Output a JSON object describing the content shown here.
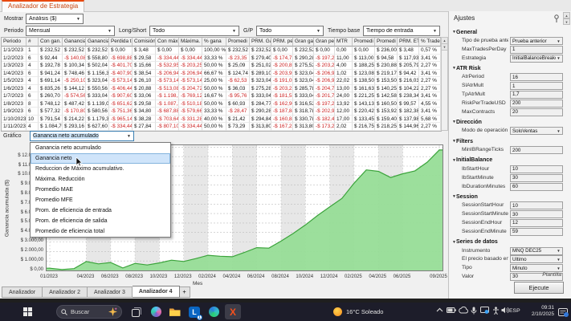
{
  "window": {
    "tab_title": "Analizador de Estrategia"
  },
  "toolbar": {
    "mostrar_label": "Mostrar",
    "mostrar_value": "Análisis ($)",
    "periodo_label": "Periodo",
    "periodo_value": "Mensual",
    "longshort_label": "Long/Short",
    "longshort_value": "Todo",
    "gp_label": "G/P",
    "gp_value": "Todo",
    "tiempobase_label": "Tiempo base",
    "tiempobase_value": "Tiempo de entrada"
  },
  "table": {
    "columns": [
      "Periodo",
      "#",
      "Con gan.",
      "Ganancia",
      "Ganancia",
      "Perdida t",
      "Comisión",
      "Con máx",
      "Máxima.",
      "% gana",
      "Promedi",
      "PRM. Ga",
      "PRM. per",
      "Gran gar",
      "Gran per",
      "MTR",
      "Promedi",
      "Promedi",
      "PRM. ETL",
      "% Trade"
    ],
    "rows": [
      [
        "1/1/2023",
        "1",
        "$ 232,52",
        "$ 232,52",
        "$ 232,52",
        "$ 0,00",
        "$ 3,48",
        "$ 0,00",
        "$ 0,00",
        "100,00 %",
        "$ 232,52",
        "$ 232,52",
        "$ 0,00",
        "$ 232,52",
        "$ 0,00",
        "0,00",
        "$ 0,00",
        "$ 236,00",
        "$ 3,48",
        "0,57 %"
      ],
      [
        "1/2/2023",
        "6",
        "$ 92,44",
        "-$ 140,08",
        "$ 558,80",
        "-$ 698,88",
        "$ 29,58",
        "-$ 334,44",
        "-$ 334,44",
        "33,33 %",
        "-$ 23,35",
        "$ 279,40",
        "-$ 174,72",
        "$ 290,28",
        "-$ 197,22",
        "11,00",
        "$ 113,00",
        "$ 94,58",
        "$ 117,93",
        "3,41 %"
      ],
      [
        "1/3/2023",
        "4",
        "$ 192,78",
        "$ 100,34",
        "$ 502,04",
        "-$ 401,70",
        "$ 15,66",
        "-$ 532,95",
        "-$ 203,25",
        "50,00 %",
        "$ 25,09",
        "$ 251,02",
        "-$ 200,85",
        "$ 275,52",
        "-$ 203,25",
        "4,00",
        "$ 188,25",
        "$ 230,88",
        "$ 205,79",
        "2,27 %"
      ],
      [
        "1/4/2023",
        "6",
        "$ 941,24",
        "$ 748,46",
        "$ 1.156,36",
        "-$ 407,90",
        "$ 38,54",
        "-$ 206,94",
        "-$ 206,94",
        "66,67 %",
        "$ 124,74",
        "$ 289,10",
        "-$ 203,95",
        "$ 323,04",
        "-$ 206,94",
        "1,02",
        "$ 123,08",
        "$ 219,17",
        "$ 94,42",
        "3,41 %"
      ],
      [
        "1/5/2023",
        "4",
        "$ 691,14",
        "-$ 250,10",
        "$ 323,04",
        "-$ 573,14",
        "$ 26,10",
        "-$ 573,14",
        "-$ 573,14",
        "25,00 %",
        "-$ 62,53",
        "$ 323,04",
        "-$ 191,05",
        "$ 323,04",
        "-$ 206,94",
        "22,02",
        "$ 138,50",
        "$ 153,50",
        "$ 216,03",
        "2,27 %"
      ],
      [
        "1/6/2023",
        "4",
        "$ 835,26",
        "$ 144,12",
        "$ 550,56",
        "-$ 406,44",
        "$ 20,88",
        "-$ 513,08",
        "-$ 204,72",
        "50,00 %",
        "$ 36,03",
        "$ 275,28",
        "-$ 203,22",
        "$ 285,78",
        "-$ 204,72",
        "13,00",
        "$ 161,63",
        "$ 140,25",
        "$ 104,22",
        "2,27 %"
      ],
      [
        "1/7/2023",
        "6",
        "$ 260,70",
        "-$ 574,56",
        "$ 333,04",
        "-$ 907,60",
        "$ 33,06",
        "-$ 1.198,14",
        "-$ 769,12",
        "16,67 %",
        "-$ 95,76",
        "$ 333,04",
        "-$ 181,52",
        "$ 333,04",
        "-$ 201,76",
        "24,00",
        "$ 221,25",
        "$ 142,58",
        "$ 238,34",
        "3,41 %"
      ],
      [
        "1/8/2023",
        "8",
        "$ 748,12",
        "$ 487,42",
        "$ 1.139,04",
        "-$ 651,62",
        "$ 29,58",
        "-$ 1.087,16",
        "-$ 510,18",
        "50,00 %",
        "$ 60,93",
        "$ 284,77",
        "-$ 162,90",
        "$ 316,52",
        "-$ 197,22",
        "13,92",
        "$ 143,13",
        "$ 160,50",
        "$ 99,57",
        "4,55 %"
      ],
      [
        "1/9/2023",
        "6",
        "$ 577,32",
        "-$ 170,80",
        "$ 580,56",
        "-$ 751,36",
        "$ 34,80",
        "-$ 687,88",
        "-$ 579,66",
        "33,33 %",
        "-$ 28,47",
        "$ 290,28",
        "-$ 187,84",
        "$ 318,78",
        "-$ 202,96",
        "12,00",
        "$ 220,42",
        "$ 153,92",
        "$ 182,38",
        "3,41 %"
      ],
      [
        "1/10/2023",
        "10",
        "$ 791,54",
        "$ 214,22",
        "$ 1.179,36",
        "-$ 965,14",
        "$ 38,28",
        "-$ 703,64",
        "-$ 331,28",
        "40,00 %",
        "$ 21,42",
        "$ 294,84",
        "-$ 160,88",
        "$ 330,78",
        "-$ 182,48",
        "17,00",
        "$ 133,45",
        "$ 159,40",
        "$ 137,98",
        "5,68 %"
      ],
      [
        "1/11/2023",
        "4",
        "$ 1.084,70",
        "$ 293,16",
        "$ 627,60",
        "-$ 334,44",
        "$ 27,84",
        "-$ 807,10",
        "-$ 334,44",
        "50,00 %",
        "$ 73,29",
        "$ 313,80",
        "-$ 167,22",
        "$ 313,80",
        "-$ 173,22",
        "2,02",
        "$ 216,75",
        "$ 218,25",
        "$ 144,96",
        "2,27 %"
      ]
    ]
  },
  "grafico": {
    "label": "Gráfico",
    "value": "Ganancia neto acumulado",
    "hover_index": 1,
    "menu_items": [
      "Ganancia neto acumulado",
      "Ganancia neto",
      "Reduccion de Máximo acumulativo.",
      "Máxima. Reducción",
      "Promedio MAE",
      "Promedio MFE",
      "Prom. de eficiencia de entrada",
      "Prom. de eficiencia de salida",
      "Promedio de eficiencia total"
    ]
  },
  "chart_data": {
    "type": "area",
    "series_name": "Ganancia neto acumulado",
    "title": "",
    "xlabel": "Mes",
    "ylabel": "Ganancia acumulada ($)",
    "x": [
      "01/2023",
      "02/2023",
      "03/2023",
      "04/2023",
      "05/2023",
      "06/2023",
      "07/2023",
      "08/2023",
      "09/2023",
      "10/2023",
      "11/2023",
      "12/2023",
      "01/2024",
      "02/2024",
      "03/2024",
      "04/2024",
      "05/2024",
      "06/2024",
      "07/2024",
      "08/2024",
      "09/2024",
      "10/2024",
      "11/2024",
      "12/2024",
      "01/2025",
      "02/2025",
      "03/2025",
      "04/2025",
      "05/2025",
      "06/2025",
      "07/2025",
      "08/2025",
      "09/2025"
    ],
    "values": [
      233,
      92,
      193,
      941,
      691,
      835,
      261,
      748,
      577,
      792,
      1085,
      950,
      1250,
      1600,
      1500,
      1450,
      1900,
      2400,
      2350,
      3100,
      3900,
      4800,
      5800,
      6700,
      7600,
      9200,
      10600,
      10450,
      9800,
      10200,
      10500,
      11400,
      12700
    ],
    "x_tick_labels": [
      "01/2023",
      "04/2023",
      "06/2023",
      "08/2023",
      "10/2023",
      "12/2023",
      "02/2024",
      "04/2024",
      "06/2024",
      "08/2024",
      "10/2024",
      "12/2024",
      "02/2025",
      "04/2025",
      "06/2025",
      "09/2025"
    ],
    "x_tick_months": [
      1,
      4,
      6,
      8,
      10,
      12,
      14,
      16,
      18,
      20,
      22,
      24,
      26,
      28,
      30,
      33
    ],
    "y_tick_labels": [
      "$ 0,00",
      "$ 1.000,00",
      "$ 2.000,00",
      "$ 3.000,00",
      "$ 4.000,00",
      "$ 5.000,00",
      "$ 6.000,00",
      "$ 7.000,00",
      "$ 8.000,00",
      "$ 9.000,00",
      "$ 10.000,00",
      "$ 11.000,00",
      "$ 12.000,00"
    ],
    "ylim": [
      0,
      13200
    ],
    "grid": "dashed",
    "legend": "none",
    "area_fill": "#97dd97",
    "line_color": "#3ba33b",
    "band_color": "#e7e7e7"
  },
  "tabs": {
    "items": [
      "Analizador",
      "Analizador 2",
      "Analizador 3",
      "Analizador 4"
    ],
    "active_index": 3,
    "add_label": "+"
  },
  "sidebar": {
    "title": "Ajustes",
    "sections": [
      {
        "title": "General",
        "rows": [
          {
            "label": "Tipo de prueba ante...",
            "value": "Prueba anterior",
            "type": "combo"
          },
          {
            "label": "MaxTradesPerDay",
            "value": "1",
            "type": "text"
          },
          {
            "label": "Estrategia",
            "value": "InitialBalanceBreakou",
            "type": "combo"
          }
        ]
      },
      {
        "title": "ATR Risk",
        "rows": [
          {
            "label": "AtrPeriod",
            "value": "16",
            "type": "text"
          },
          {
            "label": "SlAtrMult",
            "value": "1",
            "type": "text"
          },
          {
            "label": "TpAtrMult",
            "value": "1,7",
            "type": "text"
          },
          {
            "label": "RiskPerTradeUSD",
            "value": "200",
            "type": "text"
          },
          {
            "label": "MaxContracts",
            "value": "20",
            "type": "text"
          }
        ]
      },
      {
        "title": "Dirección",
        "rows": [
          {
            "label": "Modo de operación",
            "value": "SoloVentas",
            "type": "combo"
          }
        ]
      },
      {
        "title": "Filters",
        "rows": [
          {
            "label": "MinIBRangeTicks",
            "value": "200",
            "type": "text"
          }
        ]
      },
      {
        "title": "InitialBalance",
        "rows": [
          {
            "label": "IbStartHour",
            "value": "10",
            "type": "text"
          },
          {
            "label": "IbStartMinute",
            "value": "30",
            "type": "text"
          },
          {
            "label": "IbDurationMinutes",
            "value": "60",
            "type": "text"
          }
        ]
      },
      {
        "title": "Session",
        "rows": [
          {
            "label": "SessionStartHour",
            "value": "10",
            "type": "text"
          },
          {
            "label": "SessionStartMinute",
            "value": "30",
            "type": "text"
          },
          {
            "label": "SessionEndHour",
            "value": "12",
            "type": "text"
          },
          {
            "label": "SessionEndMinute",
            "value": "59",
            "type": "text"
          }
        ]
      },
      {
        "title": "Series de datos",
        "rows": [
          {
            "label": "Instrumento",
            "value": "MNQ DEC25",
            "type": "combo"
          },
          {
            "label": "El precio basado en",
            "value": "Último",
            "type": "combo"
          },
          {
            "label": "Tipo",
            "value": "Minuto",
            "type": "combo"
          },
          {
            "label": "Valor",
            "value": "30",
            "type": "text"
          }
        ]
      }
    ],
    "plantilla_label": "Plantilla",
    "ejecute_label": "Ejecute"
  },
  "taskbar": {
    "search_placeholder": "Buscar",
    "weather_temp": "16°C",
    "weather_desc": "Soleado",
    "language": "ESP",
    "time": "09:31",
    "date": "2/10/2025",
    "app_icons": [
      "task-view",
      "copilot",
      "file-explorer",
      "linkedin",
      "edge",
      "trading-app"
    ],
    "tray_icons": [
      "chevron-up",
      "battery",
      "cloud",
      "microphone",
      "screen-share",
      "accessibility",
      "speaker"
    ],
    "linkedin_badge": "1"
  }
}
